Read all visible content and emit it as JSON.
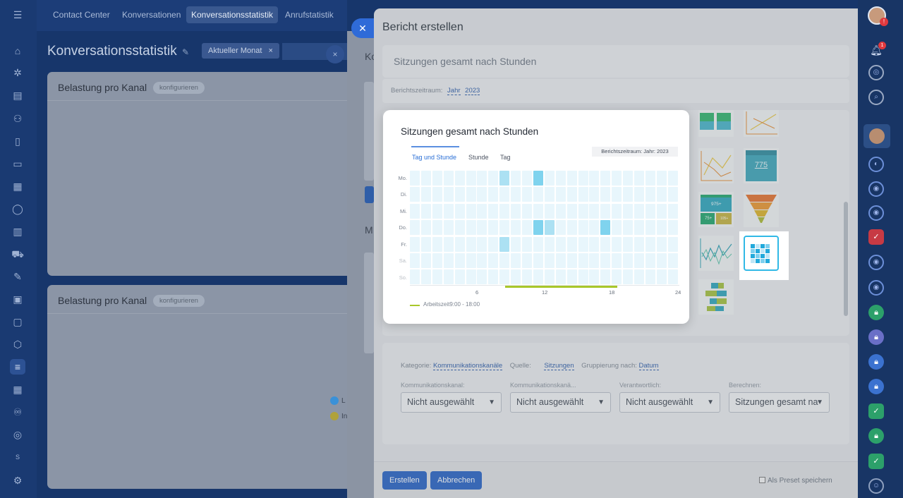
{
  "topnav": {
    "tabs": [
      {
        "label": "Contact Center",
        "active": false
      },
      {
        "label": "Konversationen",
        "active": false
      },
      {
        "label": "Konversationsstatistik",
        "active": true
      },
      {
        "label": "Anrufstatistik",
        "active": false
      }
    ]
  },
  "background": {
    "page_title": "Konversationsstatistik",
    "filter_chip": "Aktueller Monat",
    "cards": [
      {
        "title": "Belastung pro Kanal",
        "button": "konfigurieren"
      },
      {
        "title": "Belastung pro Kanal",
        "button": "konfigurieren"
      }
    ],
    "legend": [
      {
        "label": "L",
        "color": "#3a91d8"
      },
      {
        "label": "In",
        "color": "#b0a23a"
      }
    ],
    "under_panel_letters": [
      "Ko",
      "M"
    ]
  },
  "slider": {
    "title": "Bericht erstellen",
    "report_name": "Sitzungen gesamt nach Stunden",
    "period_label": "Berichtszeitraum:",
    "period_unit": "Jahr",
    "period_year": "2023",
    "settings": {
      "category_label": "Kategorie:",
      "category_value": "Kommunikationskanäle",
      "source_label": "Quelle:",
      "source_value": "Sitzungen",
      "group_label": "Gruppierung nach:",
      "group_value": "Datum",
      "selects": [
        {
          "label": "Kommunikationskanal:",
          "value": "Nicht ausgewählt"
        },
        {
          "label": "Kommunikationskanä...",
          "value": "Nicht ausgewählt"
        },
        {
          "label": "Verantwortlich:",
          "value": "Nicht ausgewählt"
        },
        {
          "label": "Berechnen:",
          "value": "Sitzungen gesamt na"
        }
      ]
    },
    "footer": {
      "create": "Erstellen",
      "cancel": "Abbrechen",
      "preset": "Als Preset speichern"
    },
    "thumb_labels": {
      "number": "775",
      "tile_top": "975+",
      "tile_left": "75+",
      "tile_right": "105+"
    }
  },
  "preview": {
    "title": "Sitzungen gesamt nach Stunden",
    "tabs": [
      "Tag und Stunde",
      "Stunde",
      "Tag"
    ],
    "active_tab": 0,
    "period": "Berichtszeitraum: Jahr: 2023",
    "days": [
      "Mo.",
      "Di.",
      "Mi.",
      "Do.",
      "Fr.",
      "Sa.",
      "So."
    ],
    "hour_ticks": [
      "6",
      "12",
      "18",
      "24"
    ],
    "working_time_label": "Arbeitszeit9:00 - 18:00",
    "colors": {
      "cell": "#e8f6fc",
      "hot": "#7fd3ee",
      "warm": "#ace1f3",
      "work": "#a8c72a",
      "accent": "#2a6fd6"
    },
    "highlighted_cells": [
      {
        "day": "Mo.",
        "hour": 8,
        "level": "warm"
      },
      {
        "day": "Mo.",
        "hour": 11,
        "level": "hot"
      },
      {
        "day": "Do.",
        "hour": 11,
        "level": "hot"
      },
      {
        "day": "Do.",
        "hour": 12,
        "level": "warm"
      },
      {
        "day": "Do.",
        "hour": 17,
        "level": "hot"
      },
      {
        "day": "Fr.",
        "hour": 8,
        "level": "warm"
      }
    ],
    "work_hours": [
      9,
      18
    ]
  }
}
